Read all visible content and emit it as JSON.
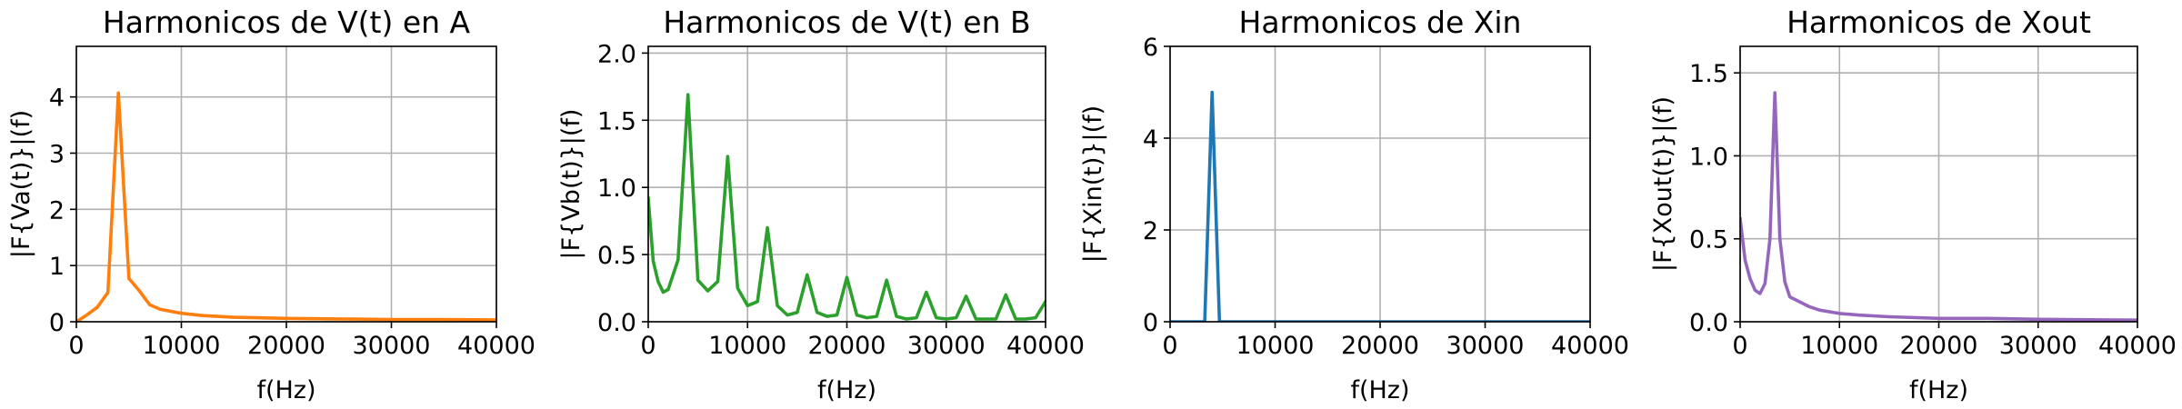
{
  "chart_data": [
    {
      "type": "line",
      "title": "Harmonicos de V(t) en A",
      "xlabel": "f(Hz)",
      "ylabel": "|F{Va(t)}|(f)",
      "xlim": [
        0,
        40000
      ],
      "ylim": [
        0,
        4.9
      ],
      "xticks": [
        "0",
        "10000",
        "20000",
        "30000",
        "40000"
      ],
      "xtick_values": [
        0,
        10000,
        20000,
        30000,
        40000
      ],
      "yticks": [
        "0",
        "1",
        "2",
        "3",
        "4"
      ],
      "ytick_values": [
        0,
        1,
        2,
        3,
        4
      ],
      "grid": true,
      "color": "#ff7f0e",
      "x": [
        0,
        1000,
        2000,
        3000,
        4000,
        5000,
        6000,
        7000,
        8000,
        10000,
        12000,
        15000,
        20000,
        25000,
        30000,
        35000,
        40000
      ],
      "y": [
        0.0,
        0.12,
        0.26,
        0.52,
        4.07,
        0.77,
        0.55,
        0.3,
        0.22,
        0.15,
        0.11,
        0.08,
        0.06,
        0.05,
        0.04,
        0.04,
        0.03
      ]
    },
    {
      "type": "line",
      "title": "Harmonicos de V(t) en B",
      "xlabel": "f(Hz)",
      "ylabel": "|F{Vb(t)}|(f)",
      "xlim": [
        0,
        40000
      ],
      "ylim": [
        0,
        2.05
      ],
      "xticks": [
        "0",
        "10000",
        "20000",
        "30000",
        "40000"
      ],
      "xtick_values": [
        0,
        10000,
        20000,
        30000,
        40000
      ],
      "yticks": [
        "0.0",
        "0.5",
        "1.0",
        "1.5",
        "2.0"
      ],
      "ytick_values": [
        0,
        0.5,
        1.0,
        1.5,
        2.0
      ],
      "grid": true,
      "color": "#2ca02c",
      "x": [
        0,
        500,
        1000,
        1500,
        2000,
        3000,
        4000,
        5000,
        6000,
        7000,
        8000,
        9000,
        10000,
        11000,
        12000,
        13000,
        14000,
        15000,
        16000,
        17000,
        18000,
        19000,
        20000,
        21000,
        22000,
        23000,
        24000,
        25000,
        26000,
        27000,
        28000,
        29000,
        30000,
        31000,
        32000,
        33000,
        34000,
        35000,
        36000,
        37000,
        38000,
        39000,
        40000
      ],
      "y": [
        0.92,
        0.45,
        0.3,
        0.22,
        0.24,
        0.46,
        1.69,
        0.31,
        0.23,
        0.3,
        1.23,
        0.25,
        0.12,
        0.15,
        0.7,
        0.12,
        0.05,
        0.07,
        0.35,
        0.07,
        0.04,
        0.05,
        0.33,
        0.05,
        0.03,
        0.04,
        0.31,
        0.04,
        0.02,
        0.03,
        0.22,
        0.03,
        0.02,
        0.03,
        0.19,
        0.02,
        0.02,
        0.02,
        0.2,
        0.02,
        0.02,
        0.03,
        0.15
      ]
    },
    {
      "type": "line",
      "title": "Harmonicos de Xin",
      "xlabel": "f(Hz)",
      "ylabel": "|F{Xin(t)}|(f)",
      "xlim": [
        0,
        40000
      ],
      "ylim": [
        0,
        6
      ],
      "xticks": [
        "0",
        "10000",
        "20000",
        "30000",
        "40000"
      ],
      "xtick_values": [
        0,
        10000,
        20000,
        30000,
        40000
      ],
      "yticks": [
        "0",
        "2",
        "4",
        "6"
      ],
      "ytick_values": [
        0,
        2,
        4,
        6
      ],
      "grid": true,
      "color": "#1f77b4",
      "x": [
        0,
        3300,
        4000,
        4700,
        40000
      ],
      "y": [
        0,
        0,
        5.0,
        0,
        0
      ]
    },
    {
      "type": "line",
      "title": "Harmonicos de Xout",
      "xlabel": "f(Hz)",
      "ylabel": "|F{Xout(t)}|(f)",
      "xlim": [
        0,
        40000
      ],
      "ylim": [
        0,
        1.66
      ],
      "xticks": [
        "0",
        "10000",
        "20000",
        "30000",
        "40000"
      ],
      "xtick_values": [
        0,
        10000,
        20000,
        30000,
        40000
      ],
      "yticks": [
        "0.0",
        "0.5",
        "1.0",
        "1.5"
      ],
      "ytick_values": [
        0,
        0.5,
        1.0,
        1.5
      ],
      "grid": true,
      "color": "#9467bd",
      "x": [
        0,
        500,
        1000,
        1500,
        2000,
        2500,
        3000,
        3500,
        4000,
        4500,
        5000,
        6000,
        7000,
        8000,
        10000,
        12000,
        15000,
        20000,
        25000,
        30000,
        35000,
        40000
      ],
      "y": [
        0.62,
        0.37,
        0.26,
        0.19,
        0.17,
        0.23,
        0.5,
        1.38,
        0.5,
        0.24,
        0.15,
        0.12,
        0.09,
        0.07,
        0.05,
        0.04,
        0.03,
        0.02,
        0.02,
        0.015,
        0.012,
        0.01
      ]
    }
  ]
}
